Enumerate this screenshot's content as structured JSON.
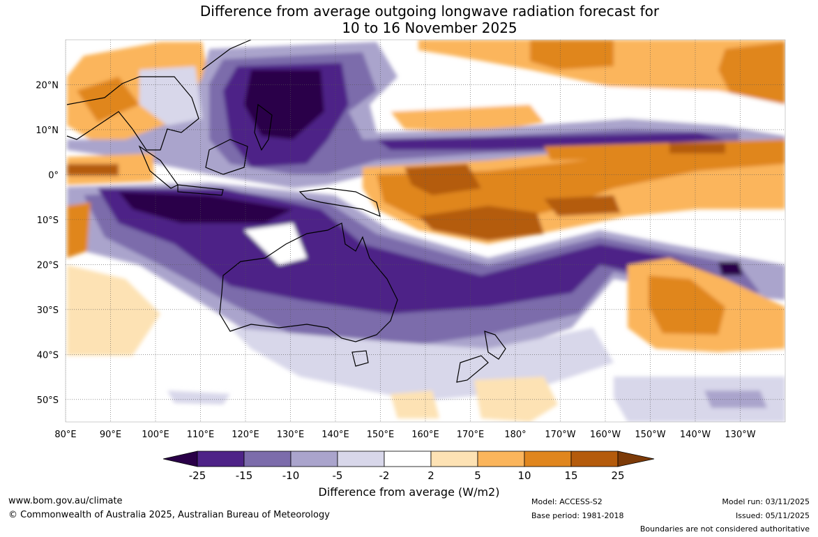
{
  "title": {
    "line1": "Difference from average outgoing longwave radiation forecast for",
    "line2": "10 to 16 November 2025"
  },
  "map": {
    "lat_labels": [
      "20°N",
      "10°N",
      "0°",
      "10°S",
      "20°S",
      "30°S",
      "40°S",
      "50°S"
    ],
    "lat_values": [
      20,
      10,
      0,
      -10,
      -20,
      -30,
      -40,
      -50
    ],
    "lon_labels": [
      "80°E",
      "90°E",
      "100°E",
      "110°E",
      "120°E",
      "130°E",
      "140°E",
      "150°E",
      "160°E",
      "170°E",
      "180°",
      "170°W",
      "160°W",
      "150°W",
      "140°W",
      "130°W"
    ],
    "lon_values": [
      80,
      90,
      100,
      110,
      120,
      130,
      140,
      150,
      160,
      170,
      180,
      190,
      200,
      210,
      220,
      230
    ],
    "lon_range": [
      80,
      240
    ],
    "lat_range": [
      -55,
      30
    ]
  },
  "colorbar": {
    "title": "Difference from average (W/m2)",
    "tick_labels": [
      "-25",
      "-15",
      "-10",
      "-5",
      "-2",
      "2",
      "5",
      "10",
      "15",
      "25"
    ],
    "colors": [
      "#2a0048",
      "#4e2387",
      "#7c6cab",
      "#aaa4cc",
      "#d8d7ea",
      "#ffffff",
      "#fde2b4",
      "#fbb55c",
      "#e0861e",
      "#b45b0c",
      "#7c3a08"
    ]
  },
  "footer": {
    "website": "www.bom.gov.au/climate",
    "copyright": "© Commonwealth of Australia 2025, Australian Bureau of Meteorology",
    "model": "Model: ACCESS-S2",
    "base_period": "Base period: 1981-2018",
    "model_run": "Model run: 03/11/2025",
    "issued": "Issued: 05/11/2025",
    "disclaimer": "Boundaries are not considered authoritative"
  }
}
